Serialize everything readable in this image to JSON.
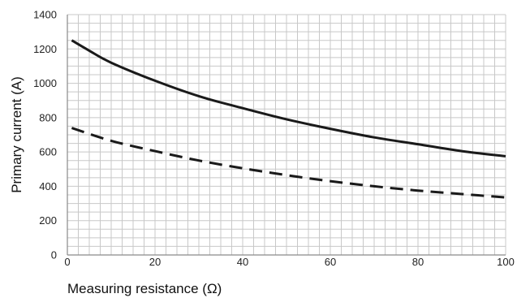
{
  "chart_data": {
    "type": "line",
    "title": "",
    "xlabel": "Measuring resistance (Ω)",
    "ylabel": "Primary current (A)",
    "xlim": [
      0,
      100
    ],
    "ylim": [
      0,
      1400
    ],
    "x_ticks": [
      "0",
      "20",
      "40",
      "60",
      "80",
      "100"
    ],
    "y_ticks": [
      "0",
      "200",
      "400",
      "600",
      "800",
      "1000",
      "1200",
      "1400"
    ],
    "grid": true,
    "legend": "none",
    "series": [
      {
        "style": "solid",
        "color": "#1a1a1a",
        "x": [
          1,
          5,
          10,
          20,
          30,
          40,
          50,
          60,
          70,
          80,
          90,
          100
        ],
        "y": [
          1250,
          1190,
          1120,
          1015,
          925,
          855,
          790,
          735,
          685,
          645,
          605,
          575
        ]
      },
      {
        "style": "dashed",
        "color": "#1a1a1a",
        "x": [
          1,
          10,
          20,
          30,
          40,
          50,
          60,
          70,
          80,
          90,
          100
        ],
        "y": [
          740,
          665,
          605,
          550,
          505,
          465,
          430,
          400,
          375,
          355,
          335
        ]
      }
    ]
  }
}
